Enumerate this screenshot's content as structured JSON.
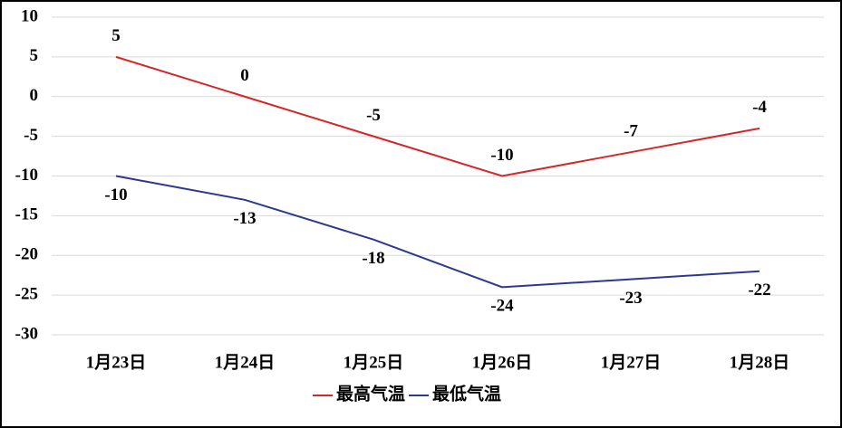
{
  "chart_data": {
    "type": "line",
    "categories": [
      "1月23日",
      "1月24日",
      "1月25日",
      "1月26日",
      "1月27日",
      "1月28日"
    ],
    "series": [
      {
        "name": "最高气温",
        "color": "#d62728",
        "values": [
          5,
          0,
          -5,
          -10,
          -7,
          -4
        ]
      },
      {
        "name": "最低气温",
        "color": "#2b3990",
        "values": [
          -10,
          -13,
          -18,
          -24,
          -23,
          -22
        ]
      }
    ],
    "ylim": [
      -30,
      10
    ],
    "yticks": [
      -30,
      -25,
      -20,
      -15,
      -10,
      -5,
      0,
      5,
      10
    ],
    "grid": true
  }
}
